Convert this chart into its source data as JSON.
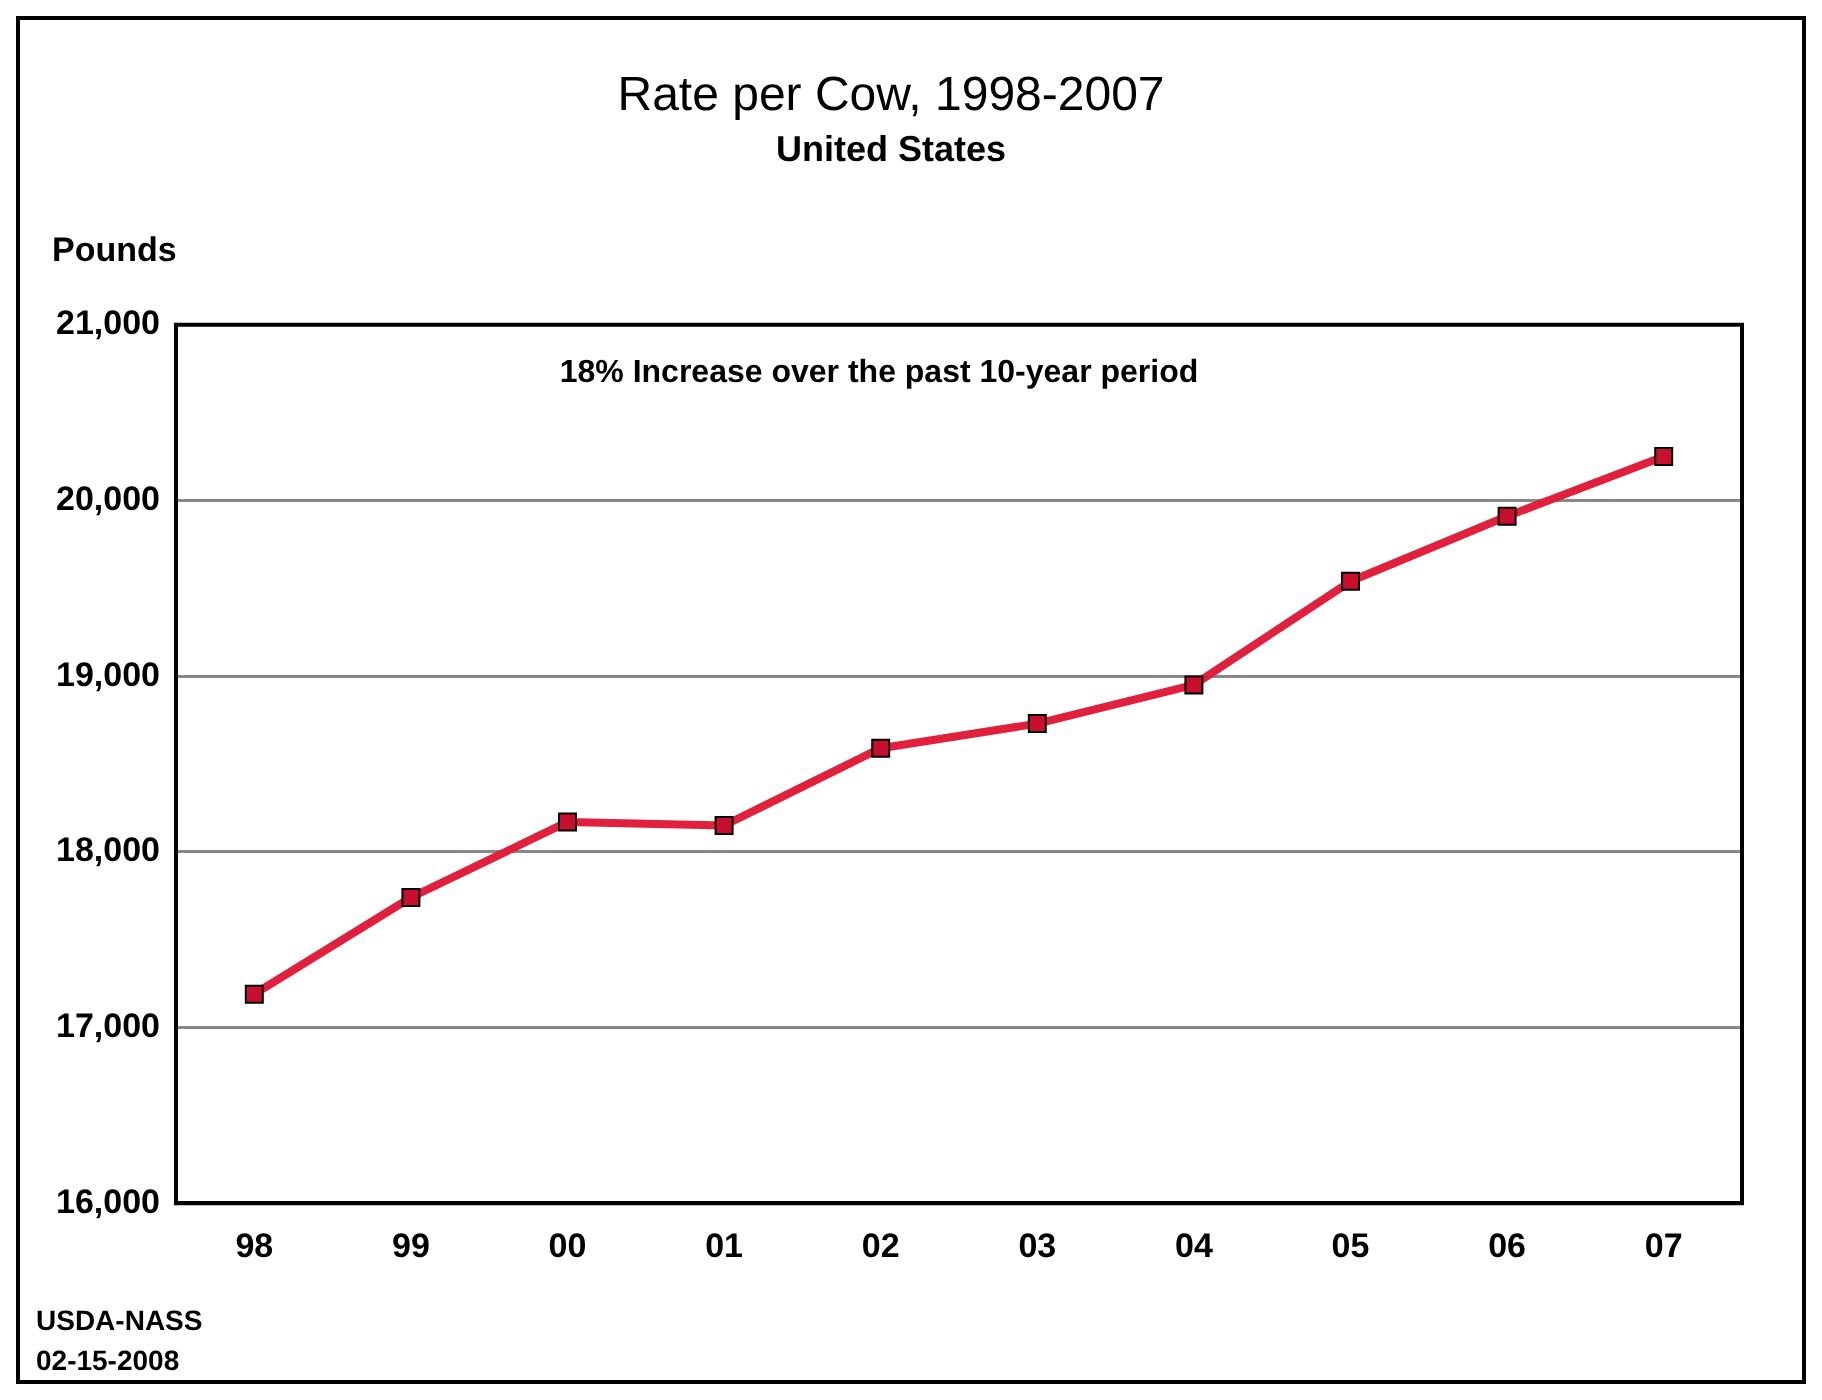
{
  "chart_data": {
    "type": "line",
    "title": "Rate per Cow, 1998-2007",
    "subtitle": "United States",
    "ylabel": "Pounds",
    "categories": [
      "98",
      "99",
      "00",
      "01",
      "02",
      "03",
      "04",
      "05",
      "06",
      "07"
    ],
    "series": [
      {
        "color": "#e0203c",
        "values": [
          17190,
          17740,
          18170,
          18150,
          18590,
          18730,
          18950,
          19540,
          19910,
          20250
        ]
      }
    ],
    "ylim": [
      16000,
      21000
    ],
    "yticks": [
      {
        "value": 16000,
        "label": "16,000"
      },
      {
        "value": 17000,
        "label": "17,000"
      },
      {
        "value": 18000,
        "label": "18,000"
      },
      {
        "value": 19000,
        "label": "19,000"
      },
      {
        "value": 20000,
        "label": "20,000"
      },
      {
        "value": 21000,
        "label": "21,000"
      }
    ],
    "grid": "y",
    "legend": false,
    "marker": "square",
    "line_style": "solid",
    "annotations": [
      "18% Increase over the past 10-year period",
      "USDA-NASS",
      "02-15-2008"
    ]
  }
}
